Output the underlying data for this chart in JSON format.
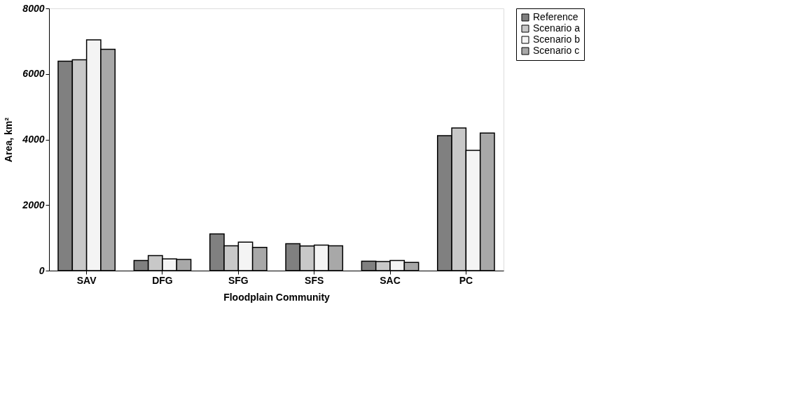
{
  "chart_data": {
    "type": "bar",
    "xlabel": "Floodplain Community",
    "ylabel": "Area, km²",
    "categories": [
      "SAV",
      "DFG",
      "SFG",
      "SFS",
      "SAC",
      "PC"
    ],
    "series": [
      {
        "name": "Reference",
        "color": "#808080",
        "values": [
          6390,
          310,
          1120,
          820,
          290,
          4120
        ]
      },
      {
        "name": "Scenario a",
        "color": "#c8c8c8",
        "values": [
          6430,
          460,
          760,
          750,
          280,
          4350
        ]
      },
      {
        "name": "Scenario b",
        "color": "#f4f4f4",
        "values": [
          7040,
          360,
          870,
          780,
          310,
          3670
        ]
      },
      {
        "name": "Scenario c",
        "color": "#a8a8a8",
        "values": [
          6750,
          340,
          710,
          760,
          250,
          4200
        ]
      }
    ],
    "ylim": [
      0,
      8000
    ],
    "yticks": [
      0,
      2000,
      4000,
      6000,
      8000
    ],
    "grid": false,
    "legend": "right"
  }
}
